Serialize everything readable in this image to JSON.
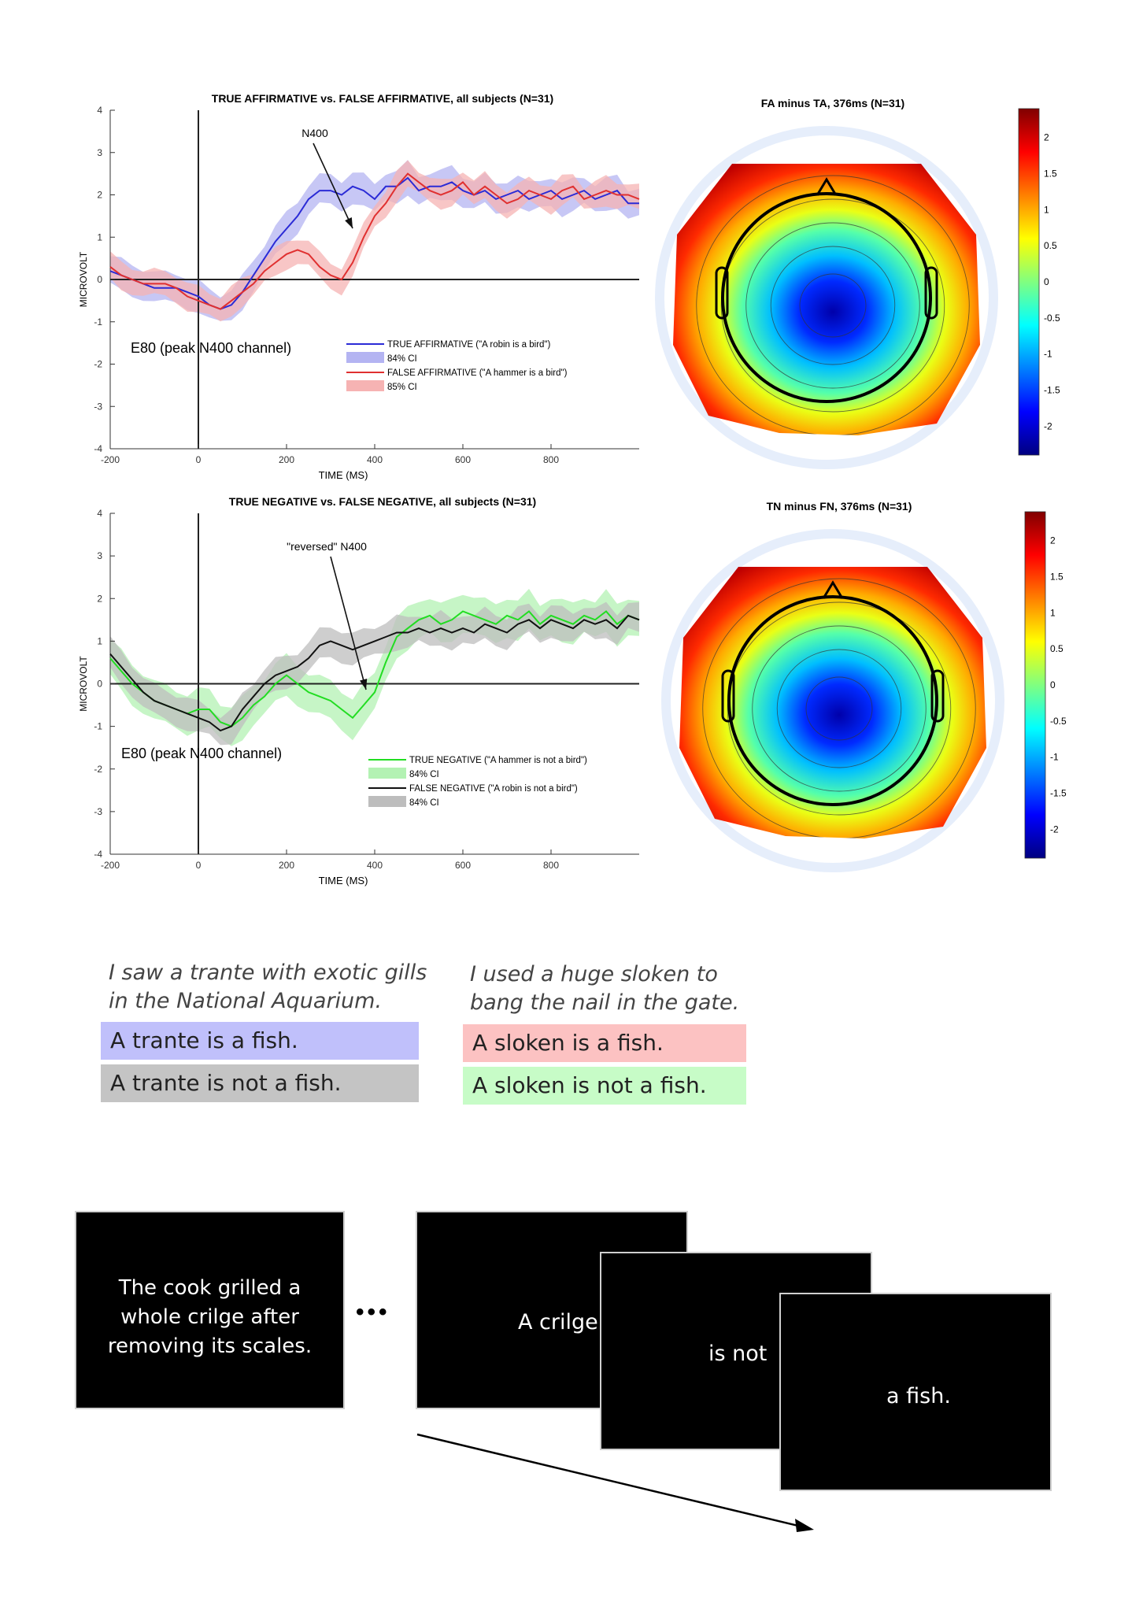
{
  "chart_data": [
    {
      "type": "line",
      "title": "TRUE AFFIRMATIVE vs. FALSE AFFIRMATIVE, all subjects (N=31)",
      "xlabel": "TIME (MS)",
      "ylabel": "MICROVOLT",
      "xlim": [
        -200,
        1000
      ],
      "ylim": [
        -4,
        4
      ],
      "xticks": [
        -200,
        0,
        200,
        400,
        600,
        800
      ],
      "yticks": [
        -4,
        -3,
        -2,
        -1,
        0,
        1,
        2,
        3,
        4
      ],
      "channel_label": "E80 (peak N400 channel)",
      "annotation": "N400",
      "legend": [
        "TRUE AFFIRMATIVE (\"A robin is a bird\")",
        "84% CI",
        "FALSE AFFIRMATIVE (\"A hammer is a bird\")",
        "85% CI"
      ],
      "series": [
        {
          "name": "TRUE AFFIRMATIVE",
          "color": "#2b2bd6",
          "ci_color": "#b4b4f2",
          "x": [
            -200,
            -175,
            -150,
            -125,
            -100,
            -75,
            -50,
            -25,
            0,
            25,
            50,
            75,
            100,
            125,
            150,
            175,
            200,
            225,
            250,
            275,
            300,
            325,
            350,
            375,
            400,
            425,
            450,
            475,
            500,
            525,
            550,
            575,
            600,
            625,
            650,
            675,
            700,
            725,
            750,
            775,
            800,
            825,
            850,
            875,
            900,
            925,
            950,
            975,
            1000
          ],
          "y": [
            0.2,
            0.1,
            0.0,
            -0.1,
            -0.2,
            -0.2,
            -0.2,
            -0.3,
            -0.4,
            -0.6,
            -0.7,
            -0.6,
            -0.3,
            0.1,
            0.5,
            0.9,
            1.2,
            1.5,
            1.9,
            2.1,
            2.1,
            2.0,
            2.2,
            2.1,
            1.9,
            2.2,
            2.2,
            2.4,
            2.1,
            2.2,
            2.2,
            2.3,
            2.1,
            2.0,
            2.1,
            1.9,
            2.0,
            2.1,
            1.9,
            2.0,
            2.1,
            1.9,
            2.0,
            2.1,
            1.9,
            2.0,
            2.1,
            1.8,
            1.8
          ],
          "ci": 0.35
        },
        {
          "name": "FALSE AFFIRMATIVE",
          "color": "#e03030",
          "ci_color": "#f6b3b3",
          "x": [
            -200,
            -175,
            -150,
            -125,
            -100,
            -75,
            -50,
            -25,
            0,
            25,
            50,
            75,
            100,
            125,
            150,
            175,
            200,
            225,
            250,
            275,
            300,
            325,
            350,
            375,
            400,
            425,
            450,
            475,
            500,
            525,
            550,
            575,
            600,
            625,
            650,
            675,
            700,
            725,
            750,
            775,
            800,
            825,
            850,
            875,
            900,
            925,
            950,
            975,
            1000
          ],
          "y": [
            0.3,
            0.1,
            0.0,
            -0.1,
            -0.1,
            -0.1,
            -0.2,
            -0.4,
            -0.5,
            -0.6,
            -0.7,
            -0.5,
            -0.3,
            -0.1,
            0.2,
            0.4,
            0.6,
            0.7,
            0.6,
            0.3,
            0.1,
            0.0,
            0.4,
            1.0,
            1.5,
            1.8,
            2.2,
            2.5,
            2.3,
            2.1,
            2.0,
            2.1,
            2.3,
            2.0,
            2.2,
            2.0,
            1.8,
            1.9,
            2.1,
            2.0,
            1.9,
            2.1,
            2.2,
            1.9,
            2.0,
            2.1,
            2.0,
            2.0,
            1.9
          ],
          "ci": 0.3
        }
      ]
    },
    {
      "type": "line",
      "title": "TRUE NEGATIVE vs. FALSE NEGATIVE, all subjects (N=31)",
      "xlabel": "TIME (MS)",
      "ylabel": "MICROVOLT",
      "xlim": [
        -200,
        1000
      ],
      "ylim": [
        -4,
        4
      ],
      "xticks": [
        -200,
        0,
        200,
        400,
        600,
        800
      ],
      "yticks": [
        -4,
        -3,
        -2,
        -1,
        0,
        1,
        2,
        3,
        4
      ],
      "channel_label": "E80 (peak N400 channel)",
      "annotation": "\"reversed\" N400",
      "legend": [
        "TRUE NEGATIVE (\"A hammer is not a bird\")",
        "84% CI",
        "FALSE NEGATIVE (\"A robin is not a bird\")",
        "84% CI"
      ],
      "series": [
        {
          "name": "TRUE NEGATIVE",
          "color": "#22dd22",
          "ci_color": "#b3f2b3",
          "x": [
            -200,
            -175,
            -150,
            -125,
            -100,
            -75,
            -50,
            -25,
            0,
            25,
            50,
            75,
            100,
            125,
            150,
            175,
            200,
            225,
            250,
            275,
            300,
            325,
            350,
            375,
            400,
            425,
            450,
            475,
            500,
            525,
            550,
            575,
            600,
            625,
            650,
            675,
            700,
            725,
            750,
            775,
            800,
            825,
            850,
            875,
            900,
            925,
            950,
            975,
            1000
          ],
          "y": [
            0.6,
            0.3,
            0.0,
            -0.2,
            -0.4,
            -0.5,
            -0.6,
            -0.7,
            -0.6,
            -0.6,
            -0.9,
            -1.0,
            -0.8,
            -0.5,
            -0.3,
            0.0,
            0.2,
            0.0,
            -0.2,
            -0.3,
            -0.4,
            -0.6,
            -0.8,
            -0.5,
            -0.2,
            0.5,
            1.1,
            1.3,
            1.5,
            1.6,
            1.4,
            1.5,
            1.7,
            1.6,
            1.5,
            1.4,
            1.6,
            1.5,
            1.7,
            1.4,
            1.6,
            1.5,
            1.4,
            1.6,
            1.5,
            1.7,
            1.4,
            1.6,
            1.5
          ],
          "ci": 0.45
        },
        {
          "name": "FALSE NEGATIVE",
          "color": "#111111",
          "ci_color": "#bdbdbd",
          "x": [
            -200,
            -175,
            -150,
            -125,
            -100,
            -75,
            -50,
            -25,
            0,
            25,
            50,
            75,
            100,
            125,
            150,
            175,
            200,
            225,
            250,
            275,
            300,
            325,
            350,
            375,
            400,
            425,
            450,
            475,
            500,
            525,
            550,
            575,
            600,
            625,
            650,
            675,
            700,
            725,
            750,
            775,
            800,
            825,
            850,
            875,
            900,
            925,
            950,
            975,
            1000
          ],
          "y": [
            0.7,
            0.4,
            0.1,
            -0.2,
            -0.4,
            -0.5,
            -0.6,
            -0.7,
            -0.8,
            -0.9,
            -1.1,
            -1.0,
            -0.6,
            -0.3,
            0.0,
            0.2,
            0.3,
            0.4,
            0.6,
            0.9,
            1.0,
            0.9,
            0.8,
            0.9,
            1.0,
            1.1,
            1.2,
            1.2,
            1.3,
            1.2,
            1.3,
            1.2,
            1.3,
            1.2,
            1.4,
            1.3,
            1.2,
            1.4,
            1.5,
            1.3,
            1.5,
            1.4,
            1.3,
            1.5,
            1.4,
            1.5,
            1.3,
            1.6,
            1.5
          ],
          "ci": 0.35
        }
      ]
    },
    {
      "type": "heatmap",
      "title": "FA minus TA, 376ms (N=31)",
      "colorbar_ticks": [
        2,
        1.5,
        1,
        0.5,
        0,
        -0.5,
        -1,
        -1.5,
        -2
      ],
      "clim": [
        -2.4,
        2.4
      ]
    },
    {
      "type": "heatmap",
      "title": "TN minus FN, 376ms (N=31)",
      "colorbar_ticks": [
        2,
        1.5,
        1,
        0.5,
        0,
        -0.5,
        -1,
        -1.5,
        -2
      ],
      "clim": [
        -2.4,
        2.4
      ]
    }
  ],
  "stimuli": {
    "left_context": [
      "I saw a trante with exotic gills",
      "in the National Aquarium."
    ],
    "left_affirmative": "A trante is a fish.",
    "left_negative": "A trante is not a fish.",
    "right_context": [
      "I used a huge sloken to",
      "bang the nail in the gate."
    ],
    "right_affirmative": "A sloken is a fish.",
    "right_negative": "A sloken is not a fish."
  },
  "sequence": {
    "context_lines": [
      "The cook grilled a",
      "whole crilge after",
      "removing its scales."
    ],
    "ellipsis": "•••",
    "frame1": "A crilge",
    "frame2": "is not",
    "frame3": "a fish."
  },
  "colors": {
    "ta_box": "#c0c0fb",
    "tn_box": "#c4c4c4",
    "fa_box": "#fcc2c2",
    "fn_box": "#c7fcc7"
  }
}
